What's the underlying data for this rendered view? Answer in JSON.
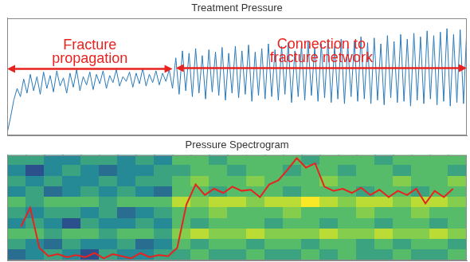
{
  "chart_data": [
    {
      "type": "line",
      "title": "Treatment Pressure",
      "x": [
        0,
        1,
        2,
        3,
        4,
        5,
        6,
        7,
        8,
        9,
        10,
        11,
        12,
        13,
        14,
        15,
        16,
        17,
        18,
        19,
        20,
        21,
        22,
        23,
        24,
        25,
        26,
        27,
        28,
        29,
        30,
        31,
        32,
        33,
        34,
        35,
        36,
        37,
        38,
        39,
        40,
        41,
        42,
        43,
        44,
        45,
        46,
        47,
        48,
        49,
        50,
        51,
        52,
        53,
        54,
        55,
        56,
        57,
        58,
        59,
        60,
        61,
        62,
        63,
        64,
        65,
        66,
        67,
        68,
        69,
        70,
        71,
        72,
        73,
        74,
        75,
        76,
        77,
        78,
        79,
        80,
        81,
        82,
        83,
        84,
        85,
        86,
        87,
        88,
        89,
        90,
        91,
        92,
        93,
        94,
        95,
        96,
        97,
        98,
        99,
        100,
        101,
        102,
        103,
        104,
        105,
        106,
        107,
        108,
        109,
        110,
        111,
        112,
        113,
        114,
        115,
        116,
        117,
        118,
        119,
        120,
        121,
        122,
        123,
        124,
        125,
        126,
        127,
        128,
        129,
        130,
        131,
        132,
        133,
        134,
        135,
        136,
        137,
        138,
        139
      ],
      "series": [
        {
          "color": "#2a7ab9",
          "values": [
            2,
            15,
            30,
            40,
            33,
            48,
            36,
            52,
            38,
            50,
            35,
            54,
            40,
            51,
            37,
            55,
            42,
            49,
            36,
            53,
            41,
            56,
            38,
            50,
            43,
            54,
            39,
            52,
            44,
            55,
            40,
            51,
            45,
            56,
            42,
            50,
            46,
            54,
            41,
            53,
            44,
            57,
            42,
            52,
            45,
            55,
            43,
            53,
            46,
            56,
            40,
            66,
            35,
            72,
            38,
            70,
            33,
            74,
            36,
            68,
            31,
            73,
            37,
            71,
            34,
            75,
            30,
            70,
            36,
            76,
            32,
            72,
            35,
            77,
            29,
            71,
            34,
            74,
            31,
            78,
            33,
            73,
            30,
            76,
            35,
            79,
            28,
            72,
            33,
            77,
            30,
            80,
            34,
            75,
            29,
            78,
            32,
            81,
            28,
            76,
            31,
            82,
            27,
            77,
            33,
            80,
            29,
            84,
            31,
            79,
            27,
            83,
            30,
            78,
            26,
            85,
            32,
            80,
            28,
            86,
            29,
            82,
            25,
            87,
            30,
            84,
            27,
            89,
            31,
            85,
            26,
            88,
            29,
            91,
            25,
            86,
            28,
            90,
            27,
            92
          ]
        }
      ],
      "xlim": [
        0,
        139
      ],
      "ylim": [
        0,
        100
      ],
      "grid": false,
      "tick_labels": false,
      "annotations": [
        {
          "text": [
            "Fracture",
            "propagation"
          ],
          "x_range": [
            0,
            50
          ]
        },
        {
          "text": [
            "Connection to",
            "fracture network"
          ],
          "x_range": [
            51,
            139
          ]
        }
      ]
    },
    {
      "type": "heatmap",
      "title": "Pressure Spectrogram",
      "cells": [
        [
          5,
          5,
          4,
          4,
          5,
          5,
          4,
          5,
          4,
          6,
          6,
          5,
          6,
          6,
          6,
          6,
          5,
          6,
          6,
          6,
          5,
          6,
          6,
          6,
          6
        ],
        [
          4,
          2,
          4,
          5,
          4,
          3,
          4,
          4,
          5,
          5,
          6,
          6,
          5,
          6,
          6,
          5,
          6,
          6,
          5,
          6,
          6,
          5,
          6,
          6,
          5
        ],
        [
          5,
          4,
          5,
          4,
          4,
          5,
          4,
          5,
          5,
          6,
          7,
          6,
          6,
          7,
          6,
          6,
          6,
          7,
          6,
          6,
          6,
          7,
          6,
          6,
          7
        ],
        [
          4,
          5,
          3,
          4,
          5,
          4,
          5,
          4,
          3,
          6,
          6,
          5,
          6,
          6,
          6,
          5,
          6,
          6,
          6,
          5,
          6,
          6,
          5,
          6,
          6
        ],
        [
          6,
          5,
          6,
          6,
          6,
          5,
          6,
          6,
          6,
          8,
          7,
          8,
          8,
          7,
          8,
          8,
          9,
          8,
          7,
          8,
          8,
          7,
          8,
          8,
          7
        ],
        [
          5,
          4,
          5,
          5,
          4,
          5,
          3,
          4,
          5,
          6,
          6,
          7,
          6,
          6,
          6,
          7,
          6,
          6,
          6,
          7,
          6,
          6,
          7,
          6,
          6
        ],
        [
          4,
          5,
          4,
          2,
          5,
          4,
          4,
          5,
          4,
          6,
          5,
          6,
          6,
          6,
          5,
          6,
          6,
          5,
          6,
          6,
          5,
          6,
          6,
          5,
          6
        ],
        [
          6,
          6,
          5,
          6,
          6,
          5,
          6,
          6,
          5,
          7,
          8,
          7,
          7,
          8,
          7,
          7,
          7,
          8,
          7,
          7,
          8,
          7,
          7,
          8,
          7
        ],
        [
          5,
          4,
          3,
          5,
          4,
          4,
          5,
          3,
          4,
          6,
          5,
          6,
          6,
          5,
          6,
          6,
          5,
          6,
          6,
          5,
          6,
          5,
          6,
          6,
          5
        ],
        [
          3,
          4,
          5,
          4,
          2,
          5,
          4,
          4,
          5,
          5,
          6,
          5,
          5,
          6,
          5,
          5,
          6,
          5,
          6,
          5,
          5,
          6,
          5,
          5,
          6
        ]
      ],
      "xlim": [
        0,
        50
      ],
      "ylim": [
        0,
        100
      ],
      "grid": false,
      "tick_labels": false,
      "series": [
        {
          "type": "line",
          "color": "#e8231f",
          "x": [
            1.5,
            2.5,
            3.5,
            4.5,
            5.5,
            6.5,
            7.5,
            8.5,
            9.5,
            10.5,
            11.5,
            12.5,
            13.5,
            14.5,
            15.5,
            16.5,
            17.5,
            18.5,
            19.5,
            20.5,
            21.5,
            22.5,
            23.5,
            24.5,
            25.5,
            26.5,
            27.5,
            28.5,
            29.5,
            30.5,
            31.5,
            32.5,
            33.5,
            34.5,
            35.5,
            36.5,
            37.5,
            38.5,
            39.5,
            40.5,
            41.5,
            42.5,
            43.5,
            44.5,
            45.5,
            46.5,
            47.5,
            48.5
          ],
          "values": [
            32,
            50,
            12,
            4,
            6,
            3,
            5,
            3,
            7,
            2,
            6,
            4,
            2,
            7,
            3,
            5,
            4,
            12,
            53,
            72,
            62,
            68,
            64,
            70,
            66,
            67,
            60,
            72,
            76,
            86,
            97,
            88,
            92,
            70,
            66,
            68,
            64,
            69,
            62,
            67,
            60,
            66,
            62,
            68,
            54,
            66,
            60,
            68
          ]
        }
      ]
    }
  ]
}
